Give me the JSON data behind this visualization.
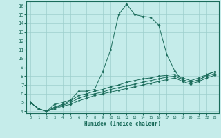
{
  "xlabel": "Humidex (Indice chaleur)",
  "ylabel": "",
  "xlim": [
    -0.5,
    23.5
  ],
  "ylim": [
    3.8,
    16.5
  ],
  "yticks": [
    4,
    5,
    6,
    7,
    8,
    9,
    10,
    11,
    12,
    13,
    14,
    15,
    16
  ],
  "xticks": [
    0,
    1,
    2,
    3,
    4,
    5,
    6,
    7,
    8,
    9,
    10,
    11,
    12,
    13,
    14,
    15,
    16,
    17,
    18,
    19,
    20,
    21,
    22,
    23
  ],
  "bg_color": "#c5ecea",
  "line_color": "#1a6b5a",
  "grid_color": "#9dcfcc",
  "lines": [
    {
      "x": [
        0,
        1,
        2,
        3,
        4,
        5,
        6,
        7,
        8,
        9,
        10,
        11,
        12,
        13,
        14,
        15,
        16,
        17,
        18,
        19,
        20,
        21,
        22,
        23
      ],
      "y": [
        5.0,
        4.3,
        4.0,
        4.8,
        5.0,
        5.3,
        6.3,
        6.3,
        6.5,
        8.5,
        11.0,
        15.0,
        16.2,
        15.0,
        14.8,
        14.7,
        13.8,
        10.5,
        8.6,
        7.5,
        7.4,
        7.5,
        8.2,
        8.5
      ]
    },
    {
      "x": [
        0,
        1,
        2,
        3,
        4,
        5,
        6,
        7,
        8,
        9,
        10,
        11,
        12,
        13,
        14,
        15,
        16,
        17,
        18,
        19,
        20,
        21,
        22,
        23
      ],
      "y": [
        5.0,
        4.3,
        4.0,
        4.5,
        4.8,
        5.2,
        5.8,
        6.0,
        6.3,
        6.5,
        6.8,
        7.0,
        7.3,
        7.5,
        7.7,
        7.8,
        8.0,
        8.1,
        8.2,
        7.8,
        7.5,
        7.8,
        8.2,
        8.5
      ]
    },
    {
      "x": [
        0,
        1,
        2,
        3,
        4,
        5,
        6,
        7,
        8,
        9,
        10,
        11,
        12,
        13,
        14,
        15,
        16,
        17,
        18,
        19,
        20,
        21,
        22,
        23
      ],
      "y": [
        5.0,
        4.3,
        4.0,
        4.4,
        4.7,
        5.0,
        5.5,
        5.8,
        6.0,
        6.2,
        6.5,
        6.7,
        6.9,
        7.1,
        7.3,
        7.5,
        7.7,
        7.9,
        8.0,
        7.6,
        7.3,
        7.6,
        8.0,
        8.3
      ]
    },
    {
      "x": [
        0,
        1,
        2,
        3,
        4,
        5,
        6,
        7,
        8,
        9,
        10,
        11,
        12,
        13,
        14,
        15,
        16,
        17,
        18,
        19,
        20,
        21,
        22,
        23
      ],
      "y": [
        5.0,
        4.3,
        4.0,
        4.3,
        4.6,
        4.8,
        5.2,
        5.5,
        5.8,
        6.0,
        6.2,
        6.4,
        6.6,
        6.8,
        7.0,
        7.2,
        7.4,
        7.6,
        7.8,
        7.4,
        7.1,
        7.4,
        7.8,
        8.1
      ]
    }
  ]
}
